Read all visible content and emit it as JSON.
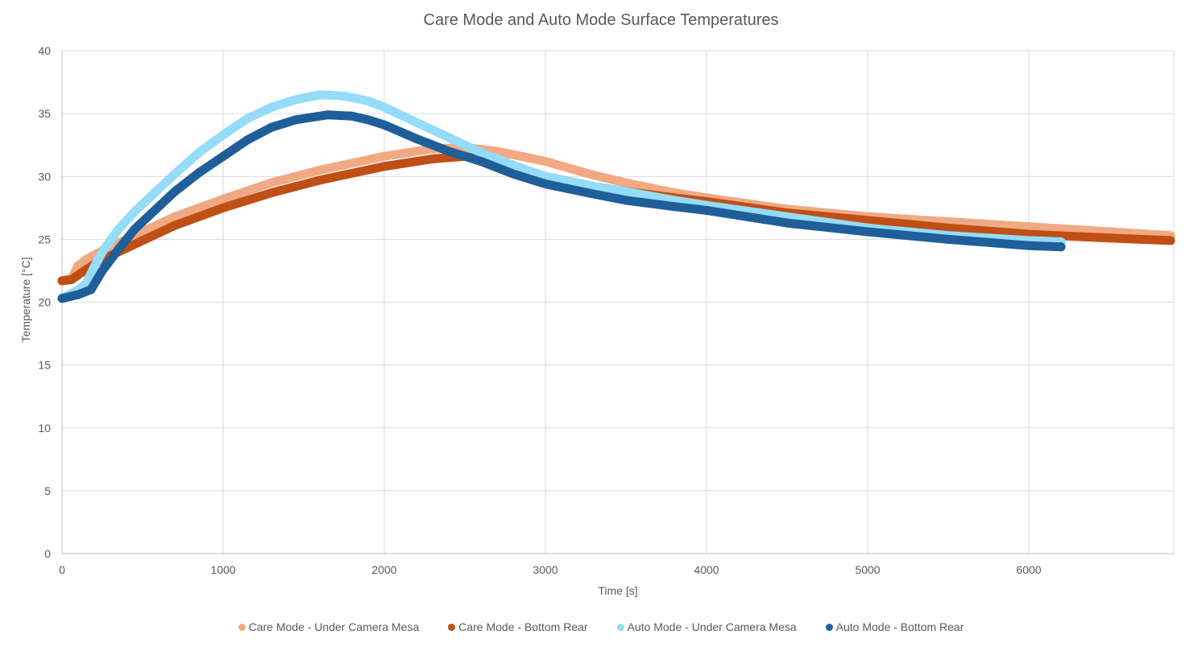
{
  "chart_data": {
    "type": "scatter",
    "title": "Care Mode and Auto Mode Surface Temperatures",
    "xlabel": "Time [s]",
    "ylabel": "Temperature [°C]",
    "xlim": [
      0,
      6900
    ],
    "ylim": [
      0,
      40
    ],
    "xticks": [
      0,
      1000,
      2000,
      3000,
      4000,
      5000,
      6000
    ],
    "yticks": [
      0,
      5,
      10,
      15,
      20,
      25,
      30,
      35,
      40
    ],
    "grid": true,
    "legend_position": "bottom",
    "series": [
      {
        "name": "Care Mode - Under Camera Mesa",
        "color": "#F1A983",
        "x": [
          0,
          60,
          100,
          150,
          250,
          400,
          500,
          700,
          1000,
          1300,
          1600,
          2000,
          2300,
          2500,
          2700,
          3000,
          3300,
          3500,
          3800,
          4000,
          4500,
          5000,
          5500,
          6000,
          6500,
          6880
        ],
        "y": [
          21.7,
          21.9,
          22.9,
          23.4,
          24.1,
          25.0,
          25.6,
          26.8,
          28.2,
          29.5,
          30.5,
          31.6,
          32.2,
          32.3,
          32.0,
          31.2,
          30.1,
          29.5,
          28.7,
          28.3,
          27.4,
          26.8,
          26.4,
          26.0,
          25.6,
          25.3
        ]
      },
      {
        "name": "Care Mode - Bottom Rear",
        "color": "#C04F15",
        "x": [
          0,
          60,
          150,
          250,
          400,
          500,
          700,
          1000,
          1300,
          1600,
          2000,
          2300,
          2500,
          2700,
          3000,
          3300,
          3500,
          3800,
          4000,
          4500,
          5000,
          5500,
          6000,
          6500,
          6880
        ],
        "y": [
          21.7,
          21.8,
          22.6,
          23.4,
          24.3,
          24.9,
          26.1,
          27.5,
          28.7,
          29.7,
          30.8,
          31.4,
          31.6,
          31.1,
          30.0,
          29.2,
          28.8,
          28.3,
          28.0,
          27.1,
          26.5,
          25.9,
          25.4,
          25.1,
          24.9
        ]
      },
      {
        "name": "Auto Mode - Under Camera Mesa",
        "color": "#94DCF8",
        "x": [
          0,
          100,
          150,
          200,
          250,
          350,
          450,
          550,
          700,
          850,
          1000,
          1150,
          1300,
          1450,
          1600,
          1750,
          1900,
          2000,
          2200,
          2400,
          2600,
          2800,
          3000,
          3300,
          3500,
          3800,
          4000,
          4500,
          5000,
          5500,
          6000,
          6200
        ],
        "y": [
          20.3,
          21.0,
          21.5,
          22.8,
          24.0,
          25.8,
          27.2,
          28.4,
          30.2,
          31.9,
          33.3,
          34.6,
          35.5,
          36.1,
          36.5,
          36.4,
          36.0,
          35.5,
          34.3,
          33.1,
          31.9,
          30.9,
          30.0,
          29.2,
          28.8,
          28.1,
          27.7,
          26.8,
          25.9,
          25.3,
          24.9,
          24.8
        ]
      },
      {
        "name": "Auto Mode - Bottom Rear",
        "color": "#1F5E99",
        "x": [
          0,
          100,
          180,
          250,
          350,
          450,
          550,
          700,
          850,
          1000,
          1150,
          1300,
          1450,
          1650,
          1800,
          1900,
          2000,
          2200,
          2400,
          2600,
          2800,
          3000,
          3300,
          3500,
          3800,
          4000,
          4500,
          5000,
          5500,
          6000,
          6200
        ],
        "y": [
          20.3,
          20.6,
          21.0,
          22.5,
          24.2,
          25.8,
          27.0,
          28.8,
          30.3,
          31.6,
          32.9,
          33.9,
          34.5,
          34.9,
          34.8,
          34.5,
          34.1,
          33.0,
          32.0,
          31.2,
          30.2,
          29.4,
          28.6,
          28.1,
          27.6,
          27.3,
          26.3,
          25.6,
          25.0,
          24.5,
          24.4
        ]
      }
    ]
  }
}
